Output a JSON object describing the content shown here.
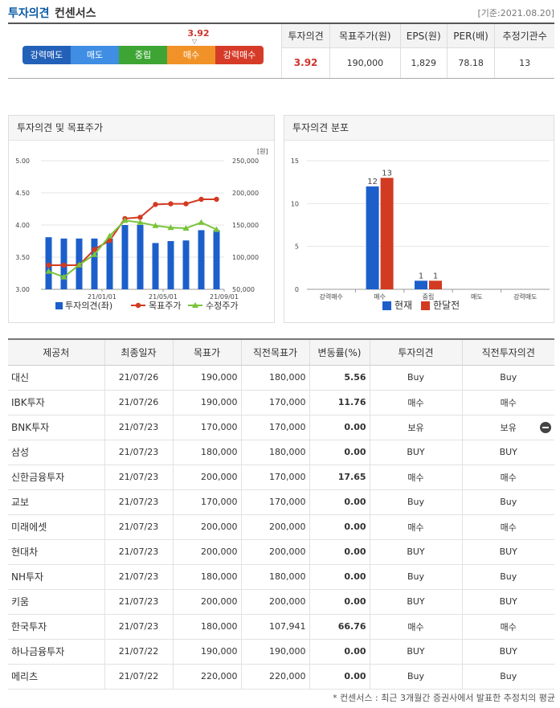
{
  "header": {
    "title_part1": "투자의견",
    "title_part2": "컨센서스",
    "base_date": "[기준:2021.08.20]"
  },
  "gauge": {
    "score": "3.92",
    "arrow": "▽",
    "score_value": 3.92,
    "segments": [
      "강력매도",
      "매도",
      "중립",
      "매수",
      "강력매수"
    ]
  },
  "summary": {
    "headers": [
      "투자의견",
      "목표주가(원)",
      "EPS(원)",
      "PER(배)",
      "추정기관수"
    ],
    "values": [
      "3.92",
      "190,000",
      "1,829",
      "78.18",
      "13"
    ]
  },
  "chart1": {
    "title": "투자의견 및 목표주가",
    "unit_label": "[원]"
  },
  "chart2": {
    "title": "투자의견 분포"
  },
  "chart_data": [
    {
      "type": "bar",
      "title": "투자의견 및 목표주가",
      "y_left": {
        "ylim": [
          3.0,
          5.0
        ],
        "ticks": [
          "3.00",
          "3.50",
          "4.00",
          "4.50",
          "5.00"
        ]
      },
      "y_right": {
        "ylim": [
          50000,
          250000
        ],
        "ticks": [
          "50,000",
          "100,000",
          "150,000",
          "200,000",
          "250,000"
        ],
        "unit": "[원]"
      },
      "x_ticks": [
        "21/01/01",
        "21/05/01",
        "21/09/01"
      ],
      "series": [
        {
          "name": "투자의견(좌)",
          "kind": "bar",
          "color": "#1c5fcb",
          "values": [
            3.81,
            3.79,
            3.79,
            3.79,
            3.79,
            4.0,
            4.0,
            3.72,
            3.75,
            3.76,
            3.92,
            3.92
          ]
        },
        {
          "name": "목표주가",
          "kind": "line",
          "color": "#d33a22",
          "values": [
            87500,
            87500,
            87500,
            112000,
            126000,
            160000,
            162000,
            182000,
            183000,
            183000,
            190000,
            190000
          ]
        },
        {
          "name": "수정주가",
          "kind": "line",
          "color": "#79c43a",
          "values": [
            78000,
            69000,
            88000,
            104000,
            133000,
            157000,
            154000,
            149000,
            146000,
            145000,
            154000,
            143000
          ]
        }
      ]
    },
    {
      "type": "bar",
      "title": "투자의견 분포",
      "categories": [
        "강력매수",
        "매수",
        "중립",
        "매도",
        "강력매도"
      ],
      "ylim": [
        0,
        15
      ],
      "y_ticks": [
        "0",
        "5",
        "10",
        "15"
      ],
      "series": [
        {
          "name": "현재",
          "color": "#1c5fcb",
          "values": [
            0,
            12,
            1,
            0,
            0
          ],
          "labels": [
            "",
            "12",
            "1",
            "",
            ""
          ]
        },
        {
          "name": "한달전",
          "color": "#d33a22",
          "values": [
            0,
            13,
            1,
            0,
            0
          ],
          "labels": [
            "",
            "13",
            "1",
            "",
            ""
          ]
        }
      ]
    }
  ],
  "table": {
    "headers": [
      "제공처",
      "최종일자",
      "목표가",
      "직전목표가",
      "변동률(%)",
      "투자의견",
      "직전투자의견"
    ],
    "rows": [
      [
        "대신",
        "21/07/26",
        "190,000",
        "180,000",
        "5.56",
        "Buy",
        "Buy"
      ],
      [
        "IBK투자",
        "21/07/26",
        "190,000",
        "170,000",
        "11.76",
        "매수",
        "매수"
      ],
      [
        "BNK투자",
        "21/07/23",
        "170,000",
        "170,000",
        "0.00",
        "보유",
        "보유"
      ],
      [
        "삼성",
        "21/07/23",
        "180,000",
        "180,000",
        "0.00",
        "BUY",
        "BUY"
      ],
      [
        "신한금융투자",
        "21/07/23",
        "200,000",
        "170,000",
        "17.65",
        "매수",
        "매수"
      ],
      [
        "교보",
        "21/07/23",
        "170,000",
        "170,000",
        "0.00",
        "Buy",
        "Buy"
      ],
      [
        "미래에셋",
        "21/07/23",
        "200,000",
        "200,000",
        "0.00",
        "매수",
        "매수"
      ],
      [
        "현대차",
        "21/07/23",
        "200,000",
        "200,000",
        "0.00",
        "BUY",
        "BUY"
      ],
      [
        "NH투자",
        "21/07/23",
        "180,000",
        "180,000",
        "0.00",
        "Buy",
        "Buy"
      ],
      [
        "키움",
        "21/07/23",
        "200,000",
        "200,000",
        "0.00",
        "BUY",
        "BUY"
      ],
      [
        "한국투자",
        "21/07/23",
        "180,000",
        "107,941",
        "66.76",
        "매수",
        "매수"
      ],
      [
        "하나금융투자",
        "21/07/22",
        "190,000",
        "190,000",
        "0.00",
        "BUY",
        "BUY"
      ],
      [
        "메리츠",
        "21/07/22",
        "220,000",
        "220,000",
        "0.00",
        "Buy",
        "Buy"
      ]
    ]
  },
  "footnote": "* 컨센서스 : 최근 3개월간 증권사에서 발표한 추정치의 평균",
  "colors": {
    "brand_blue": "#0a5aa6",
    "red": "#d0332a"
  }
}
